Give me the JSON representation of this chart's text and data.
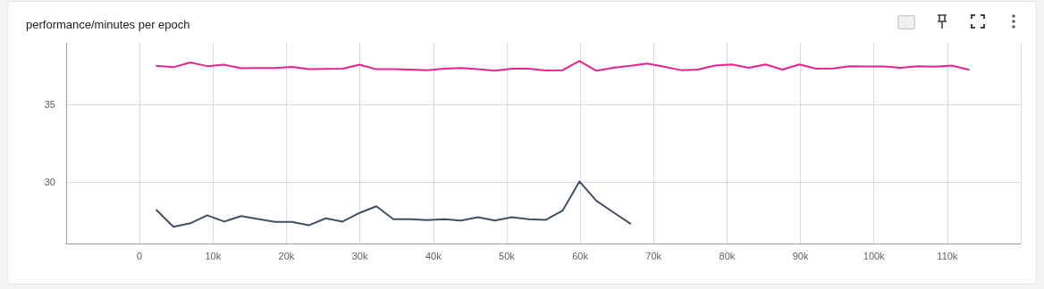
{
  "chart_data": {
    "type": "line",
    "title": "performance/minutes per epoch",
    "series": [
      {
        "color": "#e8238f",
        "x": [
          2304,
          4608,
          6912,
          9216,
          11520,
          13824,
          16128,
          18432,
          20736,
          23040,
          25344,
          27648,
          29952,
          32256,
          34560,
          36864,
          39168,
          41472,
          43776,
          46080,
          48384,
          50688,
          52992,
          55296,
          57600,
          59904,
          62208,
          64512,
          66816,
          69120,
          71424,
          73728,
          76032,
          78336,
          80640,
          82944,
          85248,
          87552,
          89856,
          92160,
          94464,
          96768,
          99072,
          101376,
          103680,
          105984,
          108288,
          110592,
          112896
        ],
        "values": [
          37.51,
          37.42,
          37.73,
          37.49,
          37.58,
          37.35,
          37.37,
          37.37,
          37.44,
          37.29,
          37.31,
          37.33,
          37.58,
          37.29,
          37.29,
          37.26,
          37.22,
          37.33,
          37.37,
          37.29,
          37.2,
          37.33,
          37.32,
          37.21,
          37.23,
          37.82,
          37.19,
          37.38,
          37.51,
          37.66,
          37.45,
          37.23,
          37.27,
          37.53,
          37.6,
          37.38,
          37.6,
          37.27,
          37.6,
          37.32,
          37.34,
          37.49,
          37.47,
          37.47,
          37.38,
          37.49,
          37.45,
          37.53,
          37.27
        ]
      },
      {
        "color": "#425066",
        "x": [
          2304,
          4608,
          6912,
          9216,
          11520,
          13824,
          16128,
          18432,
          20736,
          23040,
          25344,
          27648,
          29952,
          32256,
          34560,
          36864,
          39168,
          41472,
          43776,
          46080,
          48384,
          50688,
          52992,
          55296,
          57600,
          59904,
          62208,
          64512,
          66816
        ],
        "values": [
          28.17,
          27.08,
          27.31,
          27.83,
          27.42,
          27.78,
          27.59,
          27.4,
          27.4,
          27.18,
          27.63,
          27.42,
          27.98,
          28.41,
          27.57,
          27.57,
          27.51,
          27.57,
          27.49,
          27.7,
          27.49,
          27.7,
          27.57,
          27.53,
          28.13,
          30.02,
          28.77,
          28.02,
          27.29
        ]
      }
    ],
    "xlim": [
      -10000,
      120000
    ],
    "xticks": [
      {
        "value": -10000,
        "label": null
      },
      {
        "value": 0,
        "label": "0"
      },
      {
        "value": 10000,
        "label": "10k"
      },
      {
        "value": 20000,
        "label": "20k"
      },
      {
        "value": 30000,
        "label": "30k"
      },
      {
        "value": 40000,
        "label": "40k"
      },
      {
        "value": 50000,
        "label": "50k"
      },
      {
        "value": 60000,
        "label": "60k"
      },
      {
        "value": 70000,
        "label": "70k"
      },
      {
        "value": 80000,
        "label": "80k"
      },
      {
        "value": 90000,
        "label": "90k"
      },
      {
        "value": 100000,
        "label": "100k"
      },
      {
        "value": 110000,
        "label": "110k"
      },
      {
        "value": 120000,
        "label": null
      }
    ],
    "ylim": [
      26,
      39
    ],
    "yticks": [
      30,
      35
    ],
    "grid": true,
    "marker": "none",
    "line_style": "solid"
  }
}
